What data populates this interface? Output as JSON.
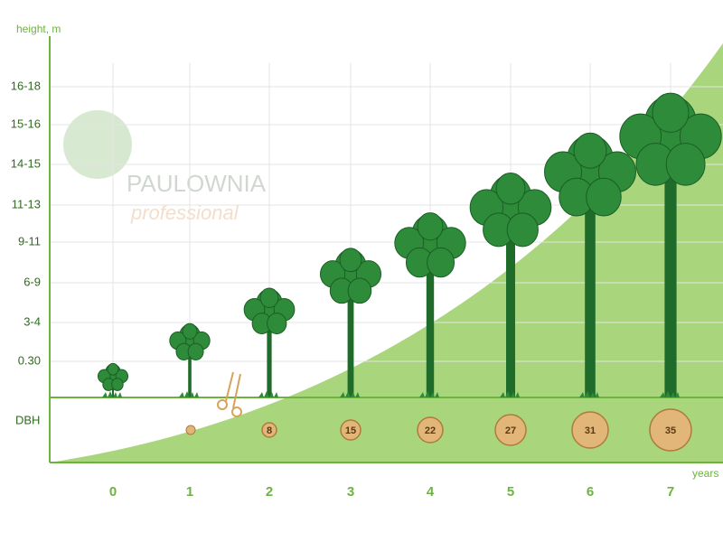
{
  "axis": {
    "y_title": "height, m",
    "y_labels": [
      "16-18",
      "15-16",
      "14-15",
      "11-13",
      "9-11",
      "6-9",
      "3-4",
      "0.30"
    ],
    "dbh_label": "DBH",
    "x_title": "years",
    "years": [
      0,
      1,
      2,
      3,
      4,
      5,
      6,
      7
    ]
  },
  "dbh_values": [
    8,
    15,
    22,
    27,
    31,
    35
  ],
  "logo": {
    "name": "PAULOWNIA",
    "tagline": "professional"
  }
}
